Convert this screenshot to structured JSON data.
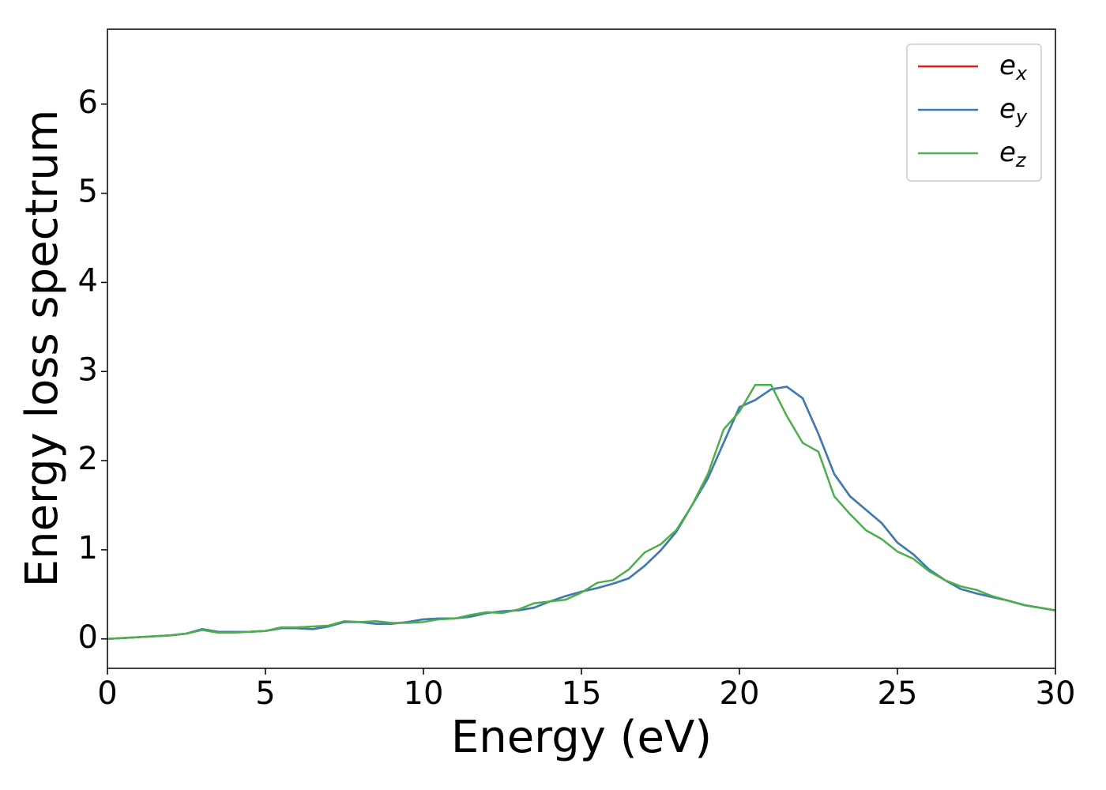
{
  "chart_data": {
    "type": "line",
    "xlabel": "Energy (eV)",
    "ylabel": "Energy loss spectrum",
    "x": [
      0,
      0.5,
      1,
      1.5,
      2,
      2.5,
      3,
      3.5,
      4,
      4.5,
      5,
      5.5,
      6,
      6.5,
      7,
      7.5,
      8,
      8.5,
      9,
      9.5,
      10,
      10.5,
      11,
      11.5,
      12,
      12.5,
      13,
      13.5,
      14,
      14.5,
      15,
      15.5,
      16,
      16.5,
      17,
      17.5,
      18,
      18.5,
      19,
      19.5,
      20,
      20.5,
      21,
      21.5,
      22,
      22.5,
      23,
      23.5,
      24,
      24.5,
      25,
      25.5,
      26,
      26.5,
      27,
      27.5,
      28,
      28.5,
      29,
      29.5,
      30
    ],
    "series": [
      {
        "name": "ex",
        "color": "#e41a1c",
        "values": [
          0,
          0.01,
          0.02,
          0.03,
          0.04,
          0.06,
          0.11,
          0.08,
          0.08,
          0.08,
          0.09,
          0.12,
          0.12,
          0.11,
          0.14,
          0.19,
          0.19,
          0.17,
          0.17,
          0.19,
          0.22,
          0.23,
          0.23,
          0.25,
          0.29,
          0.31,
          0.32,
          0.35,
          0.42,
          0.48,
          0.53,
          0.57,
          0.62,
          0.68,
          0.82,
          0.99,
          1.2,
          1.5,
          1.8,
          2.2,
          2.6,
          2.68,
          2.8,
          2.83,
          2.7,
          2.3,
          1.85,
          1.6,
          1.45,
          1.3,
          1.08,
          0.95,
          0.78,
          0.66,
          0.56,
          0.51,
          0.47,
          0.43,
          0.38,
          0.35,
          0.32
        ]
      },
      {
        "name": "ey",
        "color": "#377eb8",
        "values": [
          0,
          0.01,
          0.02,
          0.03,
          0.04,
          0.06,
          0.11,
          0.08,
          0.08,
          0.08,
          0.09,
          0.12,
          0.12,
          0.11,
          0.14,
          0.19,
          0.19,
          0.17,
          0.17,
          0.19,
          0.22,
          0.23,
          0.23,
          0.25,
          0.29,
          0.31,
          0.32,
          0.35,
          0.42,
          0.48,
          0.53,
          0.57,
          0.62,
          0.68,
          0.82,
          0.99,
          1.2,
          1.5,
          1.8,
          2.2,
          2.6,
          2.68,
          2.8,
          2.83,
          2.7,
          2.3,
          1.85,
          1.6,
          1.45,
          1.3,
          1.08,
          0.95,
          0.78,
          0.66,
          0.56,
          0.51,
          0.47,
          0.43,
          0.38,
          0.35,
          0.32
        ]
      },
      {
        "name": "ez",
        "color": "#4daf4a",
        "values": [
          0,
          0.01,
          0.02,
          0.03,
          0.04,
          0.06,
          0.1,
          0.07,
          0.07,
          0.08,
          0.09,
          0.13,
          0.13,
          0.14,
          0.15,
          0.2,
          0.19,
          0.2,
          0.18,
          0.18,
          0.19,
          0.22,
          0.23,
          0.27,
          0.3,
          0.29,
          0.33,
          0.4,
          0.42,
          0.44,
          0.52,
          0.63,
          0.66,
          0.78,
          0.97,
          1.06,
          1.22,
          1.5,
          1.85,
          2.35,
          2.55,
          2.85,
          2.85,
          2.5,
          2.2,
          2.1,
          1.6,
          1.4,
          1.22,
          1.12,
          0.98,
          0.9,
          0.76,
          0.66,
          0.59,
          0.55,
          0.48,
          0.43,
          0.38,
          0.35,
          0.32
        ]
      }
    ],
    "xlim": [
      0,
      30
    ],
    "xticks": [
      0,
      5,
      10,
      15,
      20,
      25,
      30
    ],
    "ylim": [
      -0.33,
      6.84
    ],
    "yticks": [
      0,
      1,
      2,
      3,
      4,
      5,
      6
    ],
    "legend": "upper right"
  }
}
